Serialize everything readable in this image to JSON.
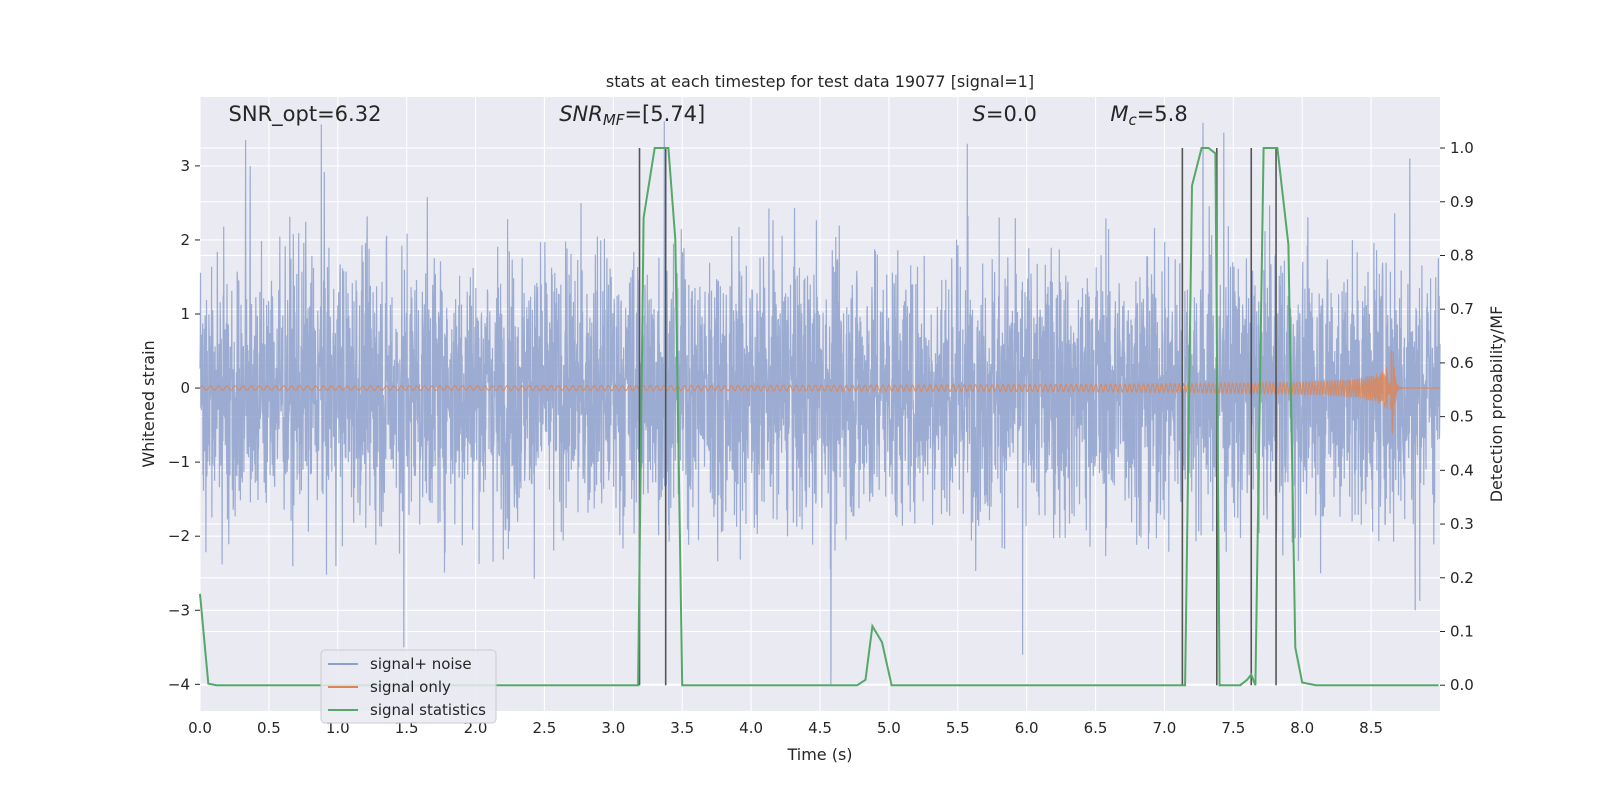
{
  "chart_data": {
    "type": "line",
    "title": "stats at each timestep for test data 19077 [signal=1]",
    "xlabel": "Time (s)",
    "ylabel_left": "Whitened strain",
    "ylabel_right": "Detection probability/MF",
    "xlim": [
      0,
      9.0
    ],
    "ylim_left": [
      -4.36,
      3.93
    ],
    "ylim_right": [
      -0.048,
      1.095
    ],
    "x_ticks": [
      0.0,
      0.5,
      1.0,
      1.5,
      2.0,
      2.5,
      3.0,
      3.5,
      4.0,
      4.5,
      5.0,
      5.5,
      6.0,
      6.5,
      7.0,
      7.5,
      8.0,
      8.5
    ],
    "x_tick_labels": [
      "0.0",
      "0.5",
      "1.0",
      "1.5",
      "2.0",
      "2.5",
      "3.0",
      "3.5",
      "4.0",
      "4.5",
      "5.0",
      "5.5",
      "6.0",
      "6.5",
      "7.0",
      "7.5",
      "8.0",
      "8.5"
    ],
    "left_ticks": [
      3,
      2,
      1,
      0,
      -1,
      -2,
      -3,
      -4
    ],
    "left_tick_labels": [
      "3",
      "2",
      "1",
      "0",
      "−1",
      "−2",
      "−3",
      "−4"
    ],
    "right_ticks": [
      1.0,
      0.9,
      0.8,
      0.7,
      0.6,
      0.5,
      0.4,
      0.3,
      0.2,
      0.1,
      0.0
    ],
    "right_tick_labels": [
      "1.0",
      "0.9",
      "0.8",
      "0.7",
      "0.6",
      "0.5",
      "0.4",
      "0.3",
      "0.2",
      "0.1",
      "0.0"
    ],
    "grid": true,
    "legend_position": "lower-left",
    "annotations": [
      {
        "parts": [
          {
            "t": "SNR_opt=6.32",
            "style": "normal"
          }
        ],
        "x": 0.2
      },
      {
        "parts": [
          {
            "t": "SNR",
            "style": "italic"
          },
          {
            "t": "MF",
            "style": "italic-sub"
          },
          {
            "t": "=[5.74]",
            "style": "normal"
          }
        ],
        "x": 2.6
      },
      {
        "parts": [
          {
            "t": "S",
            "style": "italic"
          },
          {
            "t": "=0.0",
            "style": "normal"
          }
        ],
        "x": 5.6
      },
      {
        "parts": [
          {
            "t": "M",
            "style": "italic"
          },
          {
            "t": "c",
            "style": "italic-sub"
          },
          {
            "t": "=5.8",
            "style": "normal"
          }
        ],
        "x": 6.6
      }
    ],
    "series": [
      {
        "name": "signal+ noise",
        "color": "#8da0cb",
        "axis": "left",
        "kind": "noise",
        "envelope_typical": 1.8,
        "notable_peaks": [
          {
            "x": 0.33,
            "y": 3.35
          },
          {
            "x": 0.88,
            "y": 3.56
          },
          {
            "x": 1.48,
            "y": -3.5
          },
          {
            "x": 3.37,
            "y": 3.6
          },
          {
            "x": 4.58,
            "y": -4.0
          },
          {
            "x": 5.57,
            "y": 3.3
          },
          {
            "x": 5.97,
            "y": -3.6
          },
          {
            "x": 7.28,
            "y": 3.58
          },
          {
            "x": 7.43,
            "y": 3.45
          },
          {
            "x": 8.78,
            "y": 3.1
          },
          {
            "x": 8.82,
            "y": -3.0
          }
        ]
      },
      {
        "name": "signal only",
        "color": "#dd8452",
        "axis": "left",
        "kind": "chirp",
        "merger_time": 8.66,
        "peak_amplitude": 0.62
      },
      {
        "name": "signal statistics",
        "color": "#55a868",
        "axis": "right",
        "kind": "line",
        "x": [
          0.0,
          0.06,
          0.12,
          3.1,
          3.18,
          3.22,
          3.3,
          3.4,
          3.45,
          3.5,
          3.57,
          4.77,
          4.83,
          4.88,
          4.95,
          5.02,
          5.1,
          7.1,
          7.15,
          7.2,
          7.27,
          7.32,
          7.37,
          7.4,
          7.45,
          7.55,
          7.6,
          7.63,
          7.66,
          7.72,
          7.82,
          7.9,
          7.95,
          8.0,
          8.1,
          8.99
        ],
        "y": [
          0.17,
          0.003,
          0.0,
          0.0,
          0.0,
          0.87,
          1.0,
          1.0,
          0.83,
          0.0,
          0.0,
          0.0,
          0.01,
          0.11,
          0.08,
          0.0,
          0.0,
          0.0,
          0.0,
          0.93,
          1.0,
          1.0,
          0.99,
          0.0,
          0.0,
          0.0,
          0.01,
          0.02,
          0.0,
          1.0,
          1.0,
          0.82,
          0.07,
          0.005,
          0.0,
          0.0
        ]
      }
    ],
    "vertical_lines": [
      3.19,
      3.38,
      7.13,
      7.38,
      7.63,
      7.81
    ],
    "vertical_line_color": "#555555"
  }
}
